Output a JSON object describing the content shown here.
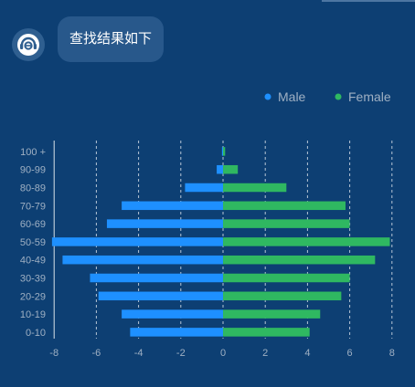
{
  "message": {
    "text": "查找结果如下"
  },
  "icons": {
    "avatar": "assistant-avatar-icon"
  },
  "colors": {
    "background": "#0d3f73",
    "bubble": "#28588b",
    "male": "#1e90ff",
    "female": "#2fb861",
    "axis_text": "#9fb0c3"
  },
  "chart_data": {
    "type": "bar",
    "orientation": "horizontal",
    "stacked": "diverging",
    "categories": [
      "0-10",
      "10-19",
      "20-29",
      "30-39",
      "40-49",
      "50-59",
      "60-69",
      "70-79",
      "80-89",
      "90-99",
      "100 +"
    ],
    "series": [
      {
        "name": "Male",
        "values": [
          -4.4,
          -4.8,
          -5.9,
          -6.3,
          -7.6,
          -8.1,
          -5.5,
          -4.8,
          -1.8,
          -0.3,
          -0.05
        ]
      },
      {
        "name": "Female",
        "values": [
          4.1,
          4.6,
          5.6,
          6.0,
          7.2,
          7.9,
          6.0,
          5.8,
          3.0,
          0.7,
          0.1
        ]
      }
    ],
    "xticks": [
      -8,
      -6,
      -4,
      -2,
      0,
      2,
      4,
      6,
      8
    ],
    "xlim": [
      -8,
      8
    ],
    "legend_position": "top-right",
    "grid": "vertical-dashed"
  }
}
